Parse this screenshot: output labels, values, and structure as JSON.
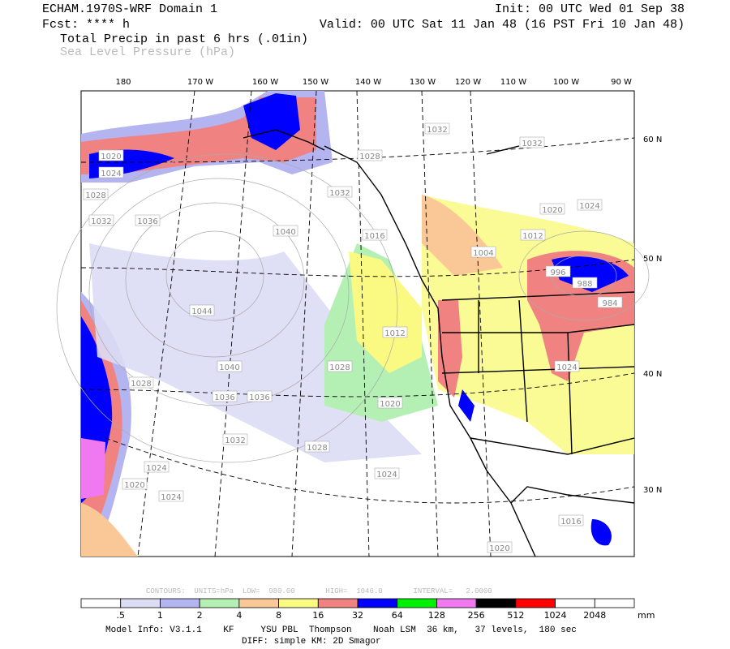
{
  "header": {
    "title": "ECHAM.1970S-WRF Domain 1",
    "forecast": "Fcst: **** h",
    "field_1": "Total Precip in past 6 hrs (.01in)",
    "field_2": "Sea Level Pressure (hPa)",
    "init": "Init: 00 UTC Wed 01 Sep 38",
    "valid": "Valid: 00 UTC Sat 11 Jan 48 (16 PST Fri 10 Jan 48)"
  },
  "map": {
    "longitude_labels": [
      "180",
      "170 W",
      "160 W",
      "150 W",
      "140 W",
      "130 W",
      "120 W",
      "110 W",
      "100 W",
      "90 W"
    ],
    "latitude_labels": [
      "60 N",
      "50 N",
      "40 N",
      "30 N"
    ],
    "contour_labels": [
      "1020",
      "1024",
      "1028",
      "1032",
      "1036",
      "1040",
      "1044",
      "1040",
      "1036",
      "1036",
      "1032",
      "1028",
      "1024",
      "1020",
      "1024",
      "1032",
      "1028",
      "1032",
      "1032",
      "1016",
      "1020",
      "1024",
      "1012",
      "1004",
      "996",
      "988",
      "984",
      "1012",
      "1028",
      "1020",
      "1024",
      "1016",
      "1020",
      "1028",
      "1024"
    ]
  },
  "colorbar": {
    "contour_info": "CONTOURS:  UNITS=hPa  LOW=  980.00       HIGH=  1046.0       INTERVAL=   2.0000",
    "colors": [
      "#ffffff",
      "#dcdcf5",
      "#b4b4f0",
      "#b4f0b4",
      "#fac896",
      "#fafa82",
      "#f08282",
      "#0000ff",
      "#00f000",
      "#f078f0",
      "#000000",
      "#ff0000",
      "#ffffff",
      "#ffffff"
    ],
    "labels": [
      ".5",
      "1",
      "2",
      "4",
      "8",
      "16",
      "32",
      "64",
      "128",
      "256",
      "512",
      "1024",
      "2048"
    ],
    "units": "mm"
  },
  "footer": {
    "model_info": "Model Info: V3.1.1    KF     YSU PBL  Thompson    Noah LSM  36 km,   37 levels,  180 sec",
    "diff": "DIFF: simple KM: 2D Smagor"
  }
}
